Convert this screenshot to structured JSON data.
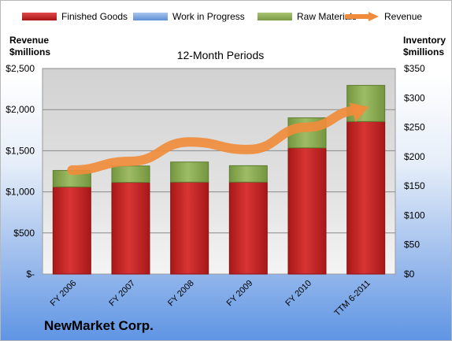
{
  "legend": {
    "finished": "Finished Goods",
    "wip": "Work in Progress",
    "raw": "Raw Materials",
    "revenue": "Revenue"
  },
  "left_axis_title": [
    "Revenue",
    "$millions"
  ],
  "right_axis_title": [
    "Inventory",
    "$millions"
  ],
  "subtitle": "12-Month Periods",
  "company": "NewMarket Corp.",
  "colors": {
    "finished": "#c8282a",
    "wip": "#6f9bd8",
    "raw": "#8cab55",
    "revenue": "#f08c3c"
  },
  "chart_data": {
    "type": "bar",
    "stacked": true,
    "categories": [
      "FY 2006",
      "FY 2007",
      "FY 2008",
      "FY 2009",
      "FY 2010",
      "TTM 6-2011"
    ],
    "series": [
      {
        "name": "Finished Goods",
        "axis": "left",
        "values": [
          1060,
          1115,
          1118,
          1118,
          1535,
          1855
        ]
      },
      {
        "name": "Work in Progress",
        "axis": "left",
        "values": [
          0,
          0,
          0,
          0,
          0,
          0
        ]
      },
      {
        "name": "Raw Materials",
        "axis": "left",
        "values": [
          200,
          200,
          245,
          200,
          365,
          440
        ]
      },
      {
        "name": "Revenue",
        "type": "line",
        "axis": "right",
        "values": [
          177,
          192,
          225,
          212,
          250,
          283
        ]
      }
    ],
    "left_axis": {
      "ylim": [
        0,
        2500
      ],
      "ticks": [
        "$-",
        "$500",
        "$1,000",
        "$1,500",
        "$2,000",
        "$2,500"
      ]
    },
    "right_axis": {
      "ylim": [
        0,
        350
      ],
      "ticks": [
        "$0",
        "$50",
        "$100",
        "$150",
        "$200",
        "$250",
        "$300",
        "$350"
      ]
    },
    "grid": true,
    "legend_position": "top"
  }
}
